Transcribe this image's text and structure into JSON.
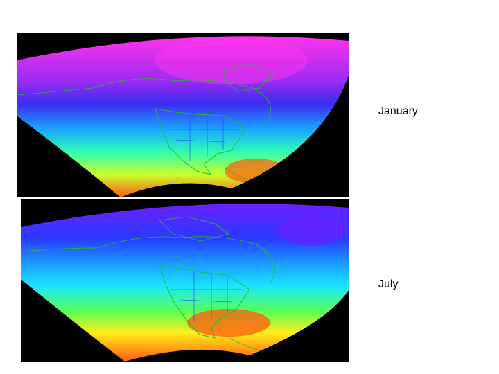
{
  "maps": [
    {
      "label": "January",
      "colors": {
        "north": "#ff33ee",
        "upper": "#9a2cf2",
        "mid_upper": "#3a2cf0",
        "mid": "#1aa8ff",
        "mid_lower": "#2fffb0",
        "lower": "#c8ff2a",
        "south": "#ff5a10",
        "outline": "#22bb33",
        "borders": "#2040ff"
      }
    },
    {
      "label": "July",
      "colors": {
        "north": "#6a20ff",
        "upper": "#2a3aff",
        "mid_upper": "#1a9cff",
        "mid": "#18e6ff",
        "mid_lower": "#58ff58",
        "lower": "#ffee18",
        "south": "#ff5a10",
        "outline": "#22bb33",
        "borders": "#2040ff"
      }
    }
  ]
}
